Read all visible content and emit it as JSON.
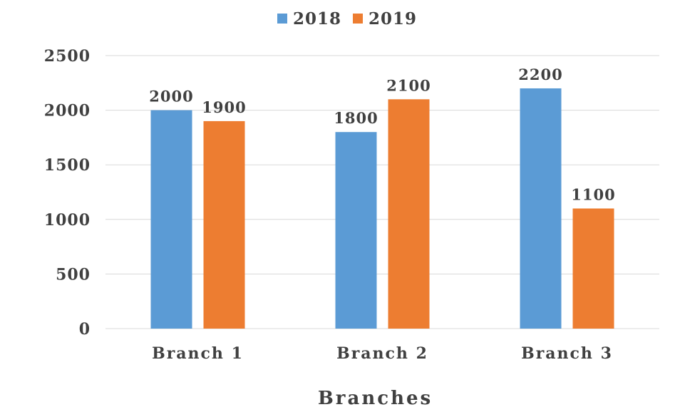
{
  "chart_data": {
    "type": "bar",
    "title": "",
    "xlabel": "Branches",
    "ylabel": "",
    "categories": [
      "Branch 1",
      "Branch 2",
      "Branch 3"
    ],
    "series": [
      {
        "name": "2018",
        "color": "#5b9bd5",
        "values": [
          2000,
          1800,
          2200
        ]
      },
      {
        "name": "2019",
        "color": "#ed7d31",
        "values": [
          1900,
          2100,
          1100
        ]
      }
    ],
    "ylim": [
      0,
      2500
    ],
    "yticks": [
      0,
      500,
      1000,
      1500,
      2000,
      2500
    ],
    "grid": true,
    "legend_position": "top",
    "data_labels": true
  }
}
